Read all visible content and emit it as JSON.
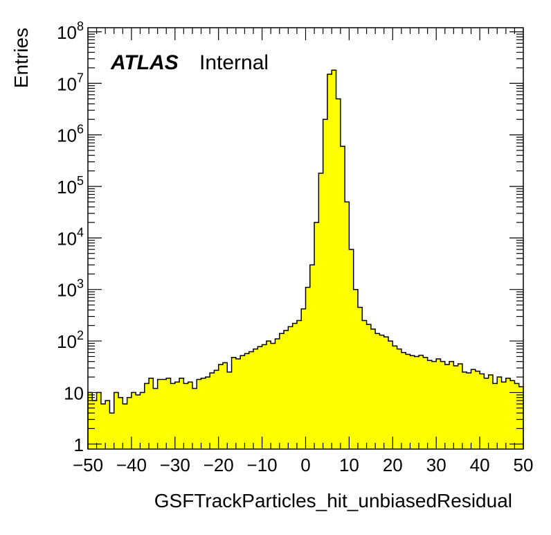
{
  "label": {
    "experiment": "ATLAS",
    "status": "Internal"
  },
  "chart_data": {
    "type": "bar",
    "histogram": true,
    "fill_color": "#ffff00",
    "line_color": "#000000",
    "xlabel": "GSFTrackParticles_hit_unbiasedResidual",
    "ylabel": "Entries",
    "xlim": [
      -50,
      50
    ],
    "ylim": [
      0.8,
      120000000
    ],
    "y_log_scale": true,
    "grid": false,
    "bin_width": 1,
    "bin_edges_start": -50,
    "x_tick_labels": [
      "−50",
      "−40",
      "−30",
      "−20",
      "−10",
      "0",
      "10",
      "20",
      "30",
      "40",
      "50"
    ],
    "x_tick_values": [
      -50,
      -40,
      -30,
      -20,
      -10,
      0,
      10,
      20,
      30,
      40,
      50
    ],
    "y_tick_labels": [
      {
        "value": 1,
        "base": "1",
        "exp": ""
      },
      {
        "value": 10,
        "base": "10",
        "exp": ""
      },
      {
        "value": 100,
        "base": "10",
        "exp": "2"
      },
      {
        "value": 1000,
        "base": "10",
        "exp": "3"
      },
      {
        "value": 10000,
        "base": "10",
        "exp": "4"
      },
      {
        "value": 100000,
        "base": "10",
        "exp": "5"
      },
      {
        "value": 1000000,
        "base": "10",
        "exp": "6"
      },
      {
        "value": 10000000,
        "base": "10",
        "exp": "7"
      },
      {
        "value": 100000000,
        "base": "10",
        "exp": "8"
      }
    ],
    "values": [
      10,
      7,
      10,
      6,
      7,
      4,
      10,
      8,
      6,
      8,
      10,
      9,
      10,
      15,
      19,
      12,
      18,
      18,
      19,
      15,
      16,
      19,
      15,
      16,
      12,
      18,
      19,
      20,
      24,
      27,
      35,
      38,
      25,
      48,
      45,
      52,
      57,
      62,
      70,
      78,
      85,
      100,
      90,
      110,
      140,
      160,
      190,
      220,
      250,
      420,
      1100,
      3000,
      20000,
      180000,
      2000000,
      15000000,
      18000000,
      5000000,
      600000,
      50000,
      6000,
      1000,
      450,
      250,
      210,
      170,
      140,
      130,
      120,
      100,
      80,
      70,
      60,
      55,
      52,
      50,
      53,
      48,
      42,
      40,
      45,
      40,
      35,
      40,
      33,
      36,
      25,
      24,
      28,
      26,
      23,
      19,
      22,
      15,
      20,
      16,
      19,
      17,
      15,
      13
    ]
  }
}
